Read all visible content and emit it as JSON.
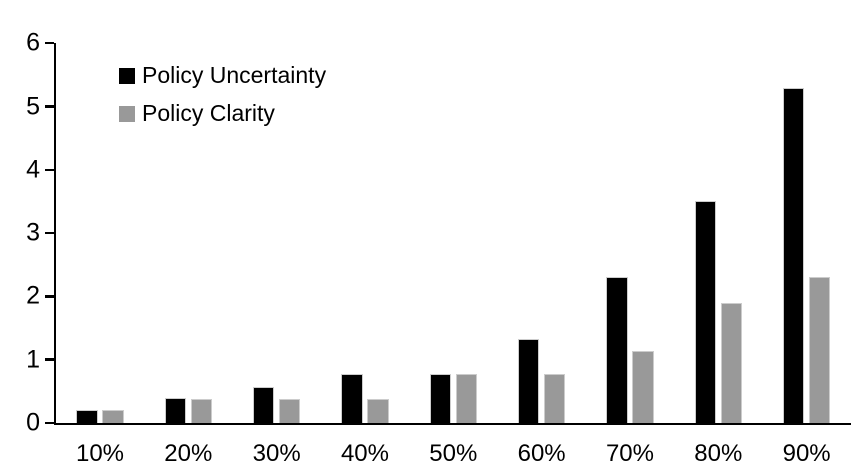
{
  "chart_data": {
    "type": "bar",
    "title": "",
    "xlabel": "",
    "ylabel": "",
    "categories": [
      "10%",
      "20%",
      "30%",
      "40%",
      "50%",
      "60%",
      "70%",
      "80%",
      "90%"
    ],
    "series": [
      {
        "name": "Policy Uncertainty",
        "color": "#000000",
        "values": [
          0.2,
          0.4,
          0.57,
          0.77,
          0.78,
          1.33,
          2.3,
          3.5,
          5.3
        ]
      },
      {
        "name": "Policy Clarity",
        "color": "#999999",
        "values": [
          0.2,
          0.38,
          0.38,
          0.38,
          0.77,
          0.77,
          1.13,
          1.9,
          2.3
        ]
      }
    ],
    "ylim": [
      0,
      6
    ],
    "yticks": [
      0,
      1,
      2,
      3,
      4,
      5,
      6
    ],
    "grid": false,
    "legend_position": "top-left",
    "bar_border_color": "#cccccc",
    "axis_color": "#000000"
  }
}
